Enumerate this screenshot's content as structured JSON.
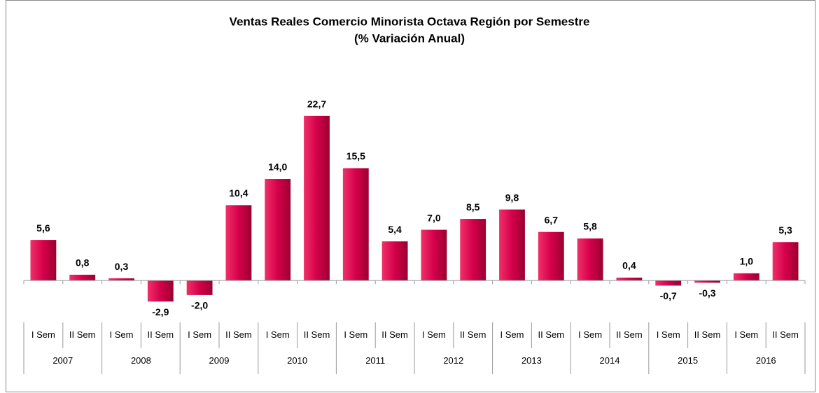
{
  "chart_data": {
    "type": "bar",
    "title": "Ventas Reales Comercio Minorista Octava Región por Semestre",
    "subtitle": "(% Variación Anual)",
    "categories": [
      "I Sem",
      "II Sem",
      "I Sem",
      "II Sem",
      "I Sem",
      "II Sem",
      "I Sem",
      "II Sem",
      "I Sem",
      "II Sem",
      "I Sem",
      "II Sem",
      "I Sem",
      "II Sem",
      "I Sem",
      "II Sem",
      "I Sem",
      "II Sem",
      "I Sem",
      "II Sem"
    ],
    "groups": [
      "2007",
      "2008",
      "2009",
      "2010",
      "2011",
      "2012",
      "2013",
      "2014",
      "2015",
      "2016"
    ],
    "values": [
      5.6,
      0.8,
      0.3,
      -2.9,
      -2.0,
      10.4,
      14.0,
      22.7,
      15.5,
      5.4,
      7.0,
      8.5,
      9.8,
      6.7,
      5.8,
      0.4,
      -0.7,
      -0.3,
      1.0,
      5.3
    ],
    "value_labels": [
      "5,6",
      "0,8",
      "0,3",
      "-2,9",
      "-2,0",
      "10,4",
      "14,0",
      "22,7",
      "15,5",
      "5,4",
      "7,0",
      "8,5",
      "9,8",
      "6,7",
      "5,8",
      "0,4",
      "-0,7",
      "-0,3",
      "1,0",
      "5,3"
    ],
    "color": "#d4004a",
    "ylim": [
      -5,
      25
    ]
  }
}
